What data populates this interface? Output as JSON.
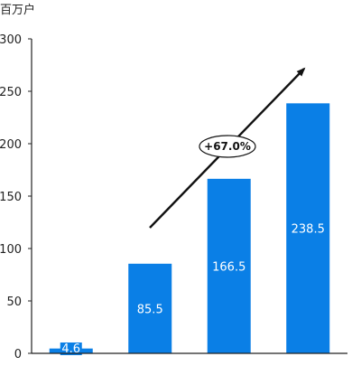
{
  "chart_data": {
    "type": "bar",
    "title": "",
    "xlabel": "",
    "ylabel": "百万户",
    "categories": [
      "",
      "",
      "",
      ""
    ],
    "values": [
      4.6,
      85.5,
      166.5,
      238.5
    ],
    "data_labels": [
      "4.6",
      "85.5",
      "166.5",
      "238.5"
    ],
    "ylim": [
      0,
      300
    ],
    "yticks": [
      0,
      50,
      100,
      150,
      200,
      250,
      300
    ],
    "ytick_labels": [
      "0",
      "50",
      "100",
      "150",
      "200",
      "250",
      "300"
    ],
    "grid": false,
    "bar_color": "#0a7fe6",
    "annotation": {
      "text": "+67.0%",
      "arrow": "up-right"
    }
  }
}
